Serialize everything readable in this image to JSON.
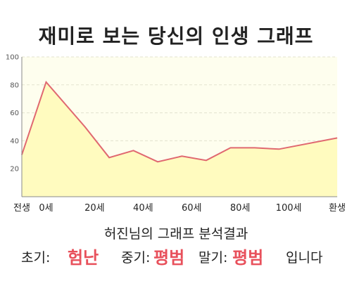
{
  "title": "재미로 보는 당신의 인생 그래프",
  "subtitle": "허진님의 그래프 분석결과",
  "result": {
    "early_label": "초기:",
    "early_value": "험난",
    "middle_label": "중기:",
    "middle_value": "평범",
    "late_label": "말기:",
    "late_value": "평범",
    "suffix": "입니다"
  },
  "colors": {
    "line": "#e06870",
    "fill": "#fffbbf",
    "plot_bg": "#fefeee",
    "highlight": "#e8505b"
  },
  "chart_data": {
    "type": "area",
    "x_ticks": [
      {
        "x": -10,
        "label": "전생"
      },
      {
        "x": 0,
        "label": "0세"
      },
      {
        "x": 20,
        "label": "20세"
      },
      {
        "x": 40,
        "label": "40세"
      },
      {
        "x": 60,
        "label": "60세"
      },
      {
        "x": 80,
        "label": "80세"
      },
      {
        "x": 100,
        "label": "100세"
      },
      {
        "x": 120,
        "label": "환생"
      }
    ],
    "y_ticks": [
      20,
      40,
      60,
      80,
      100
    ],
    "xlim": [
      -10,
      120
    ],
    "ylim": [
      0,
      100
    ],
    "grid": true,
    "series": [
      {
        "x": [
          -10,
          0,
          16,
          26,
          36,
          46,
          56,
          66,
          76,
          86,
          96,
          120
        ],
        "y": [
          30,
          82,
          50,
          28,
          33,
          25,
          29,
          26,
          35,
          35,
          34,
          42
        ]
      }
    ]
  }
}
